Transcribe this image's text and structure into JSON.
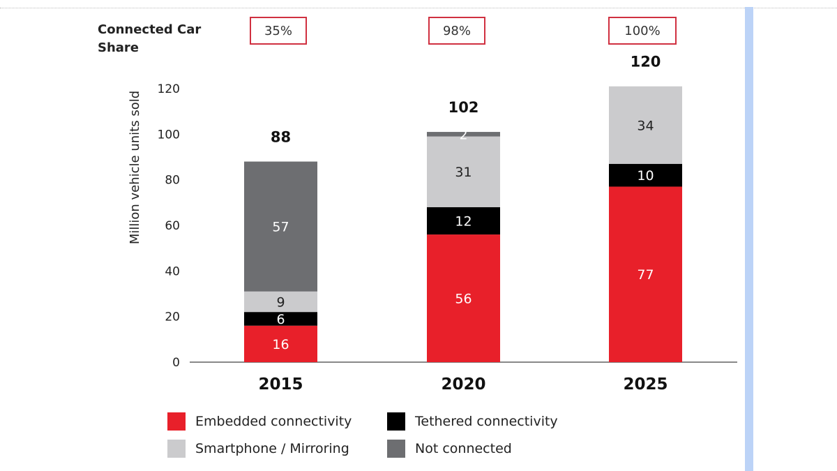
{
  "share": {
    "title_line1": "Connected Car",
    "title_line2": "Share",
    "values": [
      "35%",
      "98%",
      "100%"
    ]
  },
  "chart_data": {
    "type": "bar",
    "stacked": true,
    "categories": [
      "2015",
      "2020",
      "2025"
    ],
    "ylabel": "Million vehicle units sold",
    "ylim": [
      0,
      120
    ],
    "yticks": [
      "0",
      "20",
      "40",
      "60",
      "80",
      "100",
      "120"
    ],
    "totals": [
      "88",
      "102",
      "120"
    ],
    "grid": false,
    "legend_position": "bottom",
    "series": [
      {
        "name": "Embedded connectivity",
        "color": "#e8202a",
        "values": [
          16,
          56,
          77
        ],
        "label_color": "#ffffff"
      },
      {
        "name": "Tethered connectivity",
        "color": "#000000",
        "values": [
          6,
          12,
          10
        ],
        "label_color": "#ffffff"
      },
      {
        "name": "Smartphone / Mirroring",
        "color": "#cbcbcd",
        "values": [
          9,
          31,
          34
        ],
        "label_color": "#222222"
      },
      {
        "name": "Not connected",
        "color": "#6d6e71",
        "values": [
          57,
          2,
          0
        ],
        "label_color": "#ffffff"
      }
    ]
  }
}
